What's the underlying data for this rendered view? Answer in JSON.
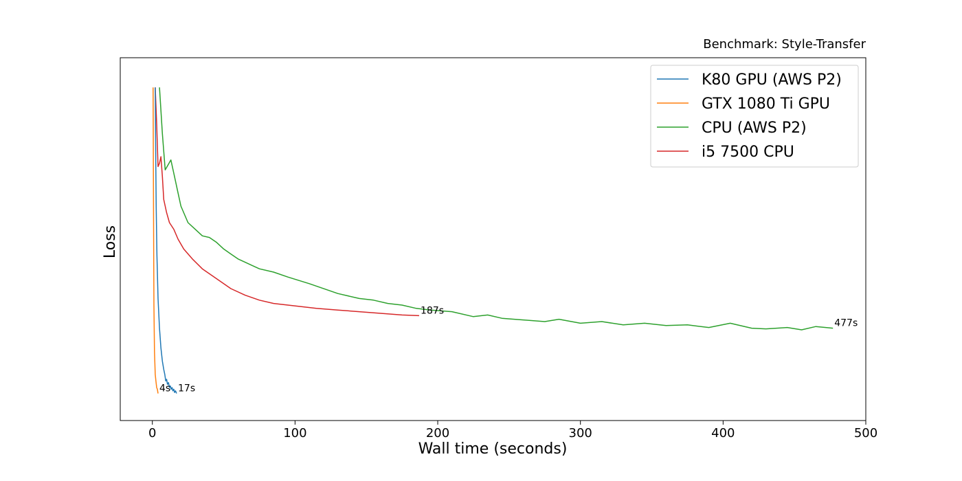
{
  "chart_data": {
    "type": "line",
    "title": "Benchmark: Style-Transfer",
    "xlabel": "Wall time (seconds)",
    "ylabel": "Loss",
    "xlim": [
      -22.5,
      500
    ],
    "ylim": [
      0,
      1
    ],
    "x_ticks": [
      0,
      100,
      200,
      300,
      400,
      500
    ],
    "y_ticks": [],
    "grid": false,
    "legend_position": "top-right",
    "series": [
      {
        "name": "K80 GPU (AWS P2)",
        "color": "#1f77b4",
        "points": [
          [
            2,
            0.96
          ],
          [
            2.3,
            0.78
          ],
          [
            2.7,
            0.6
          ],
          [
            3.2,
            0.45
          ],
          [
            4,
            0.32
          ],
          [
            5,
            0.23
          ],
          [
            6,
            0.17
          ],
          [
            7,
            0.13
          ],
          [
            8,
            0.105
          ],
          [
            8.7,
            0.09
          ],
          [
            9.4,
            0.07
          ],
          [
            10,
            0.075
          ],
          [
            10.6,
            0.06
          ],
          [
            11.3,
            0.065
          ],
          [
            12,
            0.05
          ],
          [
            12.6,
            0.055
          ],
          [
            13.2,
            0.045
          ],
          [
            13.8,
            0.05
          ],
          [
            14.4,
            0.04
          ],
          [
            15,
            0.045
          ],
          [
            15.6,
            0.035
          ],
          [
            16.2,
            0.04
          ],
          [
            17,
            0.032
          ]
        ],
        "end_label": "17s"
      },
      {
        "name": "GTX 1080 Ti GPU",
        "color": "#ff7f0e",
        "points": [
          [
            0.5,
            0.96
          ],
          [
            0.8,
            0.6
          ],
          [
            1.1,
            0.3
          ],
          [
            1.5,
            0.16
          ],
          [
            2,
            0.09
          ],
          [
            2.5,
            0.07
          ],
          [
            3,
            0.05
          ],
          [
            3.5,
            0.045
          ],
          [
            4,
            0.032
          ]
        ],
        "end_label": "4s"
      },
      {
        "name": "CPU (AWS P2)",
        "color": "#2ca02c",
        "points": [
          [
            5,
            0.96
          ],
          [
            7,
            0.82
          ],
          [
            9,
            0.71
          ],
          [
            13,
            0.74
          ],
          [
            15,
            0.7
          ],
          [
            18,
            0.64
          ],
          [
            20,
            0.6
          ],
          [
            25,
            0.55
          ],
          [
            30,
            0.53
          ],
          [
            35,
            0.51
          ],
          [
            40,
            0.505
          ],
          [
            45,
            0.49
          ],
          [
            50,
            0.47
          ],
          [
            55,
            0.455
          ],
          [
            60,
            0.44
          ],
          [
            70,
            0.42
          ],
          [
            75,
            0.41
          ],
          [
            85,
            0.4
          ],
          [
            95,
            0.385
          ],
          [
            110,
            0.365
          ],
          [
            130,
            0.335
          ],
          [
            145,
            0.32
          ],
          [
            155,
            0.315
          ],
          [
            165,
            0.305
          ],
          [
            175,
            0.3
          ],
          [
            185,
            0.29
          ],
          [
            195,
            0.285
          ],
          [
            210,
            0.28
          ],
          [
            225,
            0.265
          ],
          [
            235,
            0.27
          ],
          [
            245,
            0.26
          ],
          [
            260,
            0.255
          ],
          [
            275,
            0.25
          ],
          [
            285,
            0.257
          ],
          [
            300,
            0.245
          ],
          [
            315,
            0.25
          ],
          [
            330,
            0.24
          ],
          [
            345,
            0.245
          ],
          [
            360,
            0.238
          ],
          [
            375,
            0.24
          ],
          [
            390,
            0.232
          ],
          [
            405,
            0.245
          ],
          [
            420,
            0.23
          ],
          [
            430,
            0.228
          ],
          [
            445,
            0.232
          ],
          [
            455,
            0.225
          ],
          [
            465,
            0.235
          ],
          [
            477,
            0.23
          ]
        ],
        "end_label": "477s"
      },
      {
        "name": "i5 7500 CPU",
        "color": "#d62728",
        "points": [
          [
            2,
            0.96
          ],
          [
            3,
            0.85
          ],
          [
            4,
            0.72
          ],
          [
            5,
            0.73
          ],
          [
            6,
            0.75
          ],
          [
            7,
            0.69
          ],
          [
            8,
            0.62
          ],
          [
            10,
            0.58
          ],
          [
            12,
            0.55
          ],
          [
            15,
            0.53
          ],
          [
            18,
            0.5
          ],
          [
            22,
            0.47
          ],
          [
            28,
            0.44
          ],
          [
            35,
            0.41
          ],
          [
            45,
            0.38
          ],
          [
            55,
            0.35
          ],
          [
            65,
            0.33
          ],
          [
            75,
            0.315
          ],
          [
            85,
            0.305
          ],
          [
            95,
            0.3
          ],
          [
            105,
            0.295
          ],
          [
            115,
            0.29
          ],
          [
            130,
            0.285
          ],
          [
            145,
            0.28
          ],
          [
            160,
            0.275
          ],
          [
            175,
            0.27
          ],
          [
            187,
            0.268
          ]
        ],
        "end_label": "187s"
      }
    ]
  }
}
